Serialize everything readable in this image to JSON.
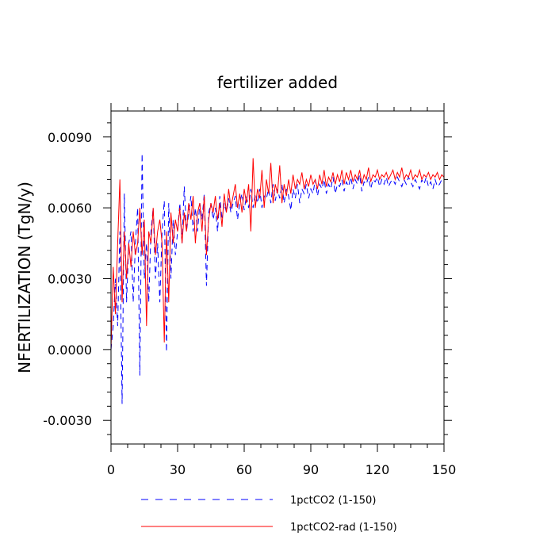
{
  "chart_data": {
    "type": "line",
    "title": "fertilizer added",
    "xlabel": "",
    "ylabel": "NFERTILIZATION  (TgN/y)",
    "xlim": [
      0,
      150
    ],
    "ylim": [
      -0.004,
      0.0101
    ],
    "xticks": [
      0,
      30,
      60,
      90,
      120,
      150
    ],
    "xtick_labels": [
      "0",
      "30",
      "60",
      "90",
      "120",
      "150"
    ],
    "yticks": [
      -0.003,
      0.0,
      0.003,
      0.006,
      0.009
    ],
    "ytick_labels": [
      "-0.0030",
      "0.0000",
      "0.0030",
      "0.0060",
      "0.0090"
    ],
    "grid": false,
    "legend_position": "bottom",
    "x": [
      0,
      1,
      2,
      3,
      4,
      5,
      6,
      7,
      8,
      9,
      10,
      11,
      12,
      13,
      14,
      15,
      16,
      17,
      18,
      19,
      20,
      21,
      22,
      23,
      24,
      25,
      26,
      27,
      28,
      29,
      30,
      31,
      32,
      33,
      34,
      35,
      36,
      37,
      38,
      39,
      40,
      41,
      42,
      43,
      44,
      45,
      46,
      47,
      48,
      49,
      50,
      51,
      52,
      53,
      54,
      55,
      56,
      57,
      58,
      59,
      60,
      61,
      62,
      63,
      64,
      65,
      66,
      67,
      68,
      69,
      70,
      71,
      72,
      73,
      74,
      75,
      76,
      77,
      78,
      79,
      80,
      81,
      82,
      83,
      84,
      85,
      86,
      87,
      88,
      89,
      90,
      91,
      92,
      93,
      94,
      95,
      96,
      97,
      98,
      99,
      100,
      101,
      102,
      103,
      104,
      105,
      106,
      107,
      108,
      109,
      110,
      111,
      112,
      113,
      114,
      115,
      116,
      117,
      118,
      119,
      120,
      121,
      122,
      123,
      124,
      125,
      126,
      127,
      128,
      129,
      130,
      131,
      132,
      133,
      134,
      135,
      136,
      137,
      138,
      139,
      140,
      141,
      142,
      143,
      144,
      145,
      146,
      147,
      148,
      149,
      150
    ],
    "series": [
      {
        "name": "1pctCO2 (1-150)",
        "color": "#0000ff",
        "dash": "dashed",
        "values": [
          0.0,
          0.001,
          0.003,
          0.001,
          0.005,
          -0.0023,
          0.0066,
          0.002,
          0.0045,
          0.005,
          0.002,
          0.0045,
          0.006,
          -0.0011,
          0.0083,
          0.003,
          0.0045,
          0.002,
          0.005,
          0.006,
          0.003,
          0.0045,
          0.002,
          0.005,
          0.0063,
          -0.0001,
          0.0062,
          0.003,
          0.0055,
          0.004,
          0.005,
          0.0062,
          0.0045,
          0.0069,
          0.005,
          0.0058,
          0.0065,
          0.005,
          0.006,
          0.005,
          0.0062,
          0.0055,
          0.0066,
          0.0027,
          0.0058,
          0.0062,
          0.0055,
          0.006,
          0.005,
          0.0065,
          0.0055,
          0.0062,
          0.0058,
          0.0064,
          0.0058,
          0.0062,
          0.0065,
          0.0055,
          0.0062,
          0.0066,
          0.0059,
          0.0065,
          0.006,
          0.0068,
          0.006,
          0.0066,
          0.0062,
          0.0068,
          0.006,
          0.0065,
          0.0064,
          0.0068,
          0.0062,
          0.007,
          0.0063,
          0.0068,
          0.0064,
          0.007,
          0.0062,
          0.0068,
          0.0065,
          0.0059,
          0.0068,
          0.0064,
          0.007,
          0.0062,
          0.0068,
          0.0066,
          0.007,
          0.0064,
          0.0068,
          0.0066,
          0.0072,
          0.0065,
          0.007,
          0.0068,
          0.0072,
          0.0066,
          0.007,
          0.0068,
          0.0073,
          0.0066,
          0.007,
          0.0069,
          0.0072,
          0.0067,
          0.0071,
          0.0069,
          0.0073,
          0.0068,
          0.0072,
          0.007,
          0.0074,
          0.0067,
          0.0071,
          0.007,
          0.0073,
          0.0068,
          0.0072,
          0.0071,
          0.0073,
          0.0069,
          0.0072,
          0.007,
          0.0073,
          0.0069,
          0.0071,
          0.0072,
          0.007,
          0.0073,
          0.0071,
          0.0069,
          0.0072,
          0.007,
          0.0073,
          0.0071,
          0.0069,
          0.0072,
          0.007,
          0.0068,
          0.0072,
          0.007,
          0.0073,
          0.0069,
          0.0071,
          0.0068,
          0.0072,
          0.0069,
          0.007,
          0.0072,
          0.0071
        ]
      },
      {
        "name": "1pctCO2-rad (1-150)",
        "color": "#ff0000",
        "dash": "solid",
        "values": [
          0.0,
          0.0035,
          0.0015,
          0.0045,
          0.0072,
          0.002,
          0.005,
          0.003,
          0.0045,
          0.0035,
          0.005,
          0.004,
          0.0045,
          0.006,
          0.004,
          0.0055,
          0.001,
          0.005,
          0.0045,
          0.006,
          0.004,
          0.005,
          0.0055,
          0.0045,
          0.0003,
          0.005,
          0.002,
          0.0058,
          0.0045,
          0.0055,
          0.005,
          0.006,
          0.0045,
          0.0058,
          0.005,
          0.0062,
          0.0055,
          0.0065,
          0.0045,
          0.0058,
          0.0062,
          0.005,
          0.0065,
          0.004,
          0.0055,
          0.0062,
          0.0058,
          0.0065,
          0.0055,
          0.0062,
          0.0052,
          0.0066,
          0.0058,
          0.0068,
          0.006,
          0.0065,
          0.007,
          0.006,
          0.0066,
          0.0058,
          0.0068,
          0.0062,
          0.007,
          0.005,
          0.0081,
          0.006,
          0.0068,
          0.0064,
          0.0076,
          0.006,
          0.0072,
          0.0066,
          0.0079,
          0.0062,
          0.007,
          0.0066,
          0.0078,
          0.0062,
          0.007,
          0.0065,
          0.0072,
          0.0066,
          0.0074,
          0.0068,
          0.0072,
          0.007,
          0.0075,
          0.0068,
          0.0072,
          0.0069,
          0.0074,
          0.007,
          0.0072,
          0.0068,
          0.0074,
          0.007,
          0.0076,
          0.0069,
          0.0073,
          0.0071,
          0.0075,
          0.007,
          0.0074,
          0.0071,
          0.0076,
          0.007,
          0.0075,
          0.0072,
          0.0076,
          0.0071,
          0.0074,
          0.0072,
          0.0076,
          0.007,
          0.0074,
          0.0072,
          0.0077,
          0.0071,
          0.0074,
          0.0073,
          0.0076,
          0.0072,
          0.0074,
          0.0073,
          0.0075,
          0.0072,
          0.0074,
          0.0076,
          0.0072,
          0.0075,
          0.0073,
          0.0077,
          0.0072,
          0.0074,
          0.0073,
          0.0076,
          0.0072,
          0.0074,
          0.0073,
          0.0076,
          0.0072,
          0.0074,
          0.0073,
          0.0075,
          0.0072,
          0.0074,
          0.0073,
          0.0075,
          0.0072,
          0.0074,
          0.0073
        ]
      }
    ]
  }
}
